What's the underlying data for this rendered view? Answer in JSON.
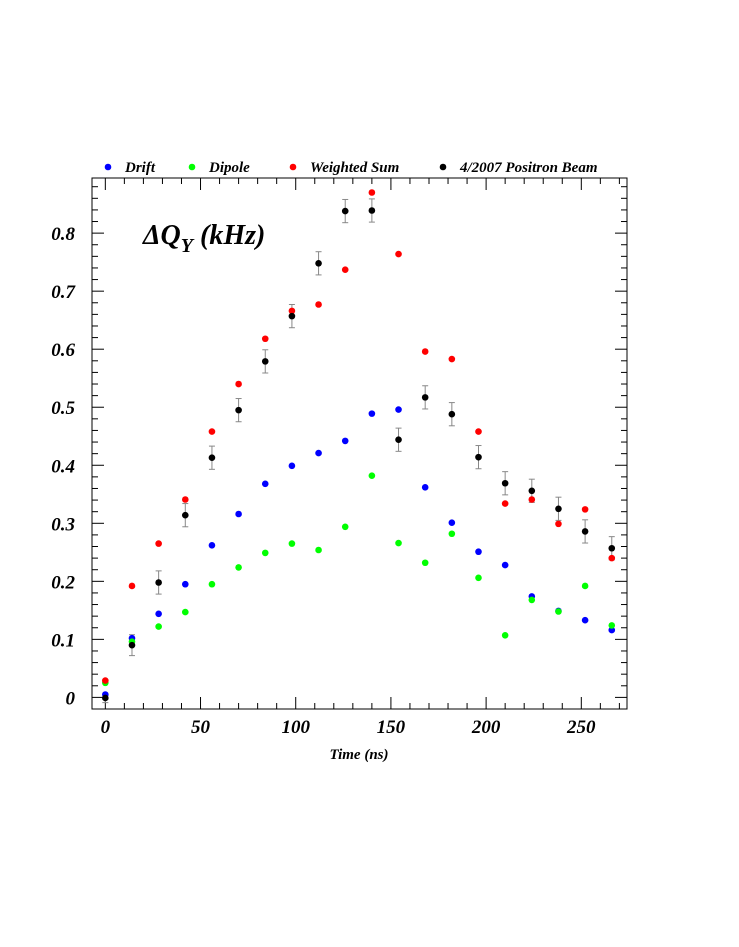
{
  "chart_data": {
    "type": "scatter",
    "title": "",
    "xlabel": "Time (ns)",
    "ylabel": "",
    "annotation": {
      "main": "ΔQ",
      "subscript": "Y",
      "suffix": " (kHz)"
    },
    "xlim": [
      -7,
      274
    ],
    "ylim": [
      -0.02,
      0.895
    ],
    "xticks": [
      0,
      50,
      100,
      150,
      200,
      250
    ],
    "xtick_labels": [
      "0",
      "50",
      "100",
      "150",
      "200",
      "250"
    ],
    "yticks": [
      0,
      0.1,
      0.2,
      0.3,
      0.4,
      0.5,
      0.6,
      0.7,
      0.8
    ],
    "ytick_labels": [
      "0",
      "0.1",
      "0.2",
      "0.3",
      "0.4",
      "0.5",
      "0.6",
      "0.7",
      "0.8"
    ],
    "grid": false,
    "legend_position": "top",
    "series": [
      {
        "name": "Drift",
        "color": "#0000ff",
        "x": [
          0,
          14,
          28,
          42,
          56,
          70,
          84,
          98,
          112,
          126,
          140,
          154,
          168,
          182,
          196,
          210,
          224,
          238,
          252,
          266
        ],
        "y": [
          0.005,
          0.102,
          0.144,
          0.195,
          0.262,
          0.316,
          0.368,
          0.399,
          0.421,
          0.442,
          0.489,
          0.496,
          0.362,
          0.301,
          0.251,
          0.228,
          0.174,
          0.149,
          0.133,
          0.116
        ]
      },
      {
        "name": "Dipole",
        "color": "#00ff00",
        "x": [
          0,
          14,
          28,
          42,
          56,
          70,
          84,
          98,
          112,
          126,
          140,
          154,
          168,
          182,
          196,
          210,
          224,
          238,
          252,
          266
        ],
        "y": [
          0.025,
          0.096,
          0.122,
          0.147,
          0.195,
          0.224,
          0.249,
          0.265,
          0.254,
          0.294,
          0.382,
          0.266,
          0.232,
          0.282,
          0.206,
          0.107,
          0.168,
          0.148,
          0.192,
          0.124
        ]
      },
      {
        "name": "Weighted Sum",
        "color": "#ff0000",
        "x": [
          0,
          14,
          28,
          42,
          56,
          70,
          84,
          98,
          112,
          126,
          140,
          154,
          168,
          182,
          196,
          210,
          224,
          238,
          252,
          266
        ],
        "y": [
          0.029,
          0.192,
          0.265,
          0.341,
          0.458,
          0.54,
          0.618,
          0.666,
          0.677,
          0.737,
          0.87,
          0.764,
          0.596,
          0.583,
          0.458,
          0.334,
          0.341,
          0.299,
          0.324,
          0.24
        ]
      },
      {
        "name": "4/2007 Positron Beam",
        "color": "#000000",
        "x": [
          0,
          14,
          28,
          42,
          56,
          70,
          84,
          98,
          112,
          126,
          140,
          154,
          168,
          182,
          196,
          210,
          224,
          238,
          252,
          266
        ],
        "y": [
          -0.001,
          0.09,
          0.198,
          0.314,
          0.413,
          0.495,
          0.579,
          0.657,
          0.748,
          0.838,
          0.839,
          0.444,
          0.517,
          0.488,
          0.414,
          0.369,
          0.356,
          0.325,
          0.286,
          0.257
        ],
        "yerr": [
          0.008,
          0.018,
          0.02,
          0.02,
          0.02,
          0.02,
          0.02,
          0.02,
          0.02,
          0.02,
          0.02,
          0.02,
          0.02,
          0.02,
          0.02,
          0.02,
          0.02,
          0.02,
          0.02,
          0.02
        ]
      }
    ]
  }
}
